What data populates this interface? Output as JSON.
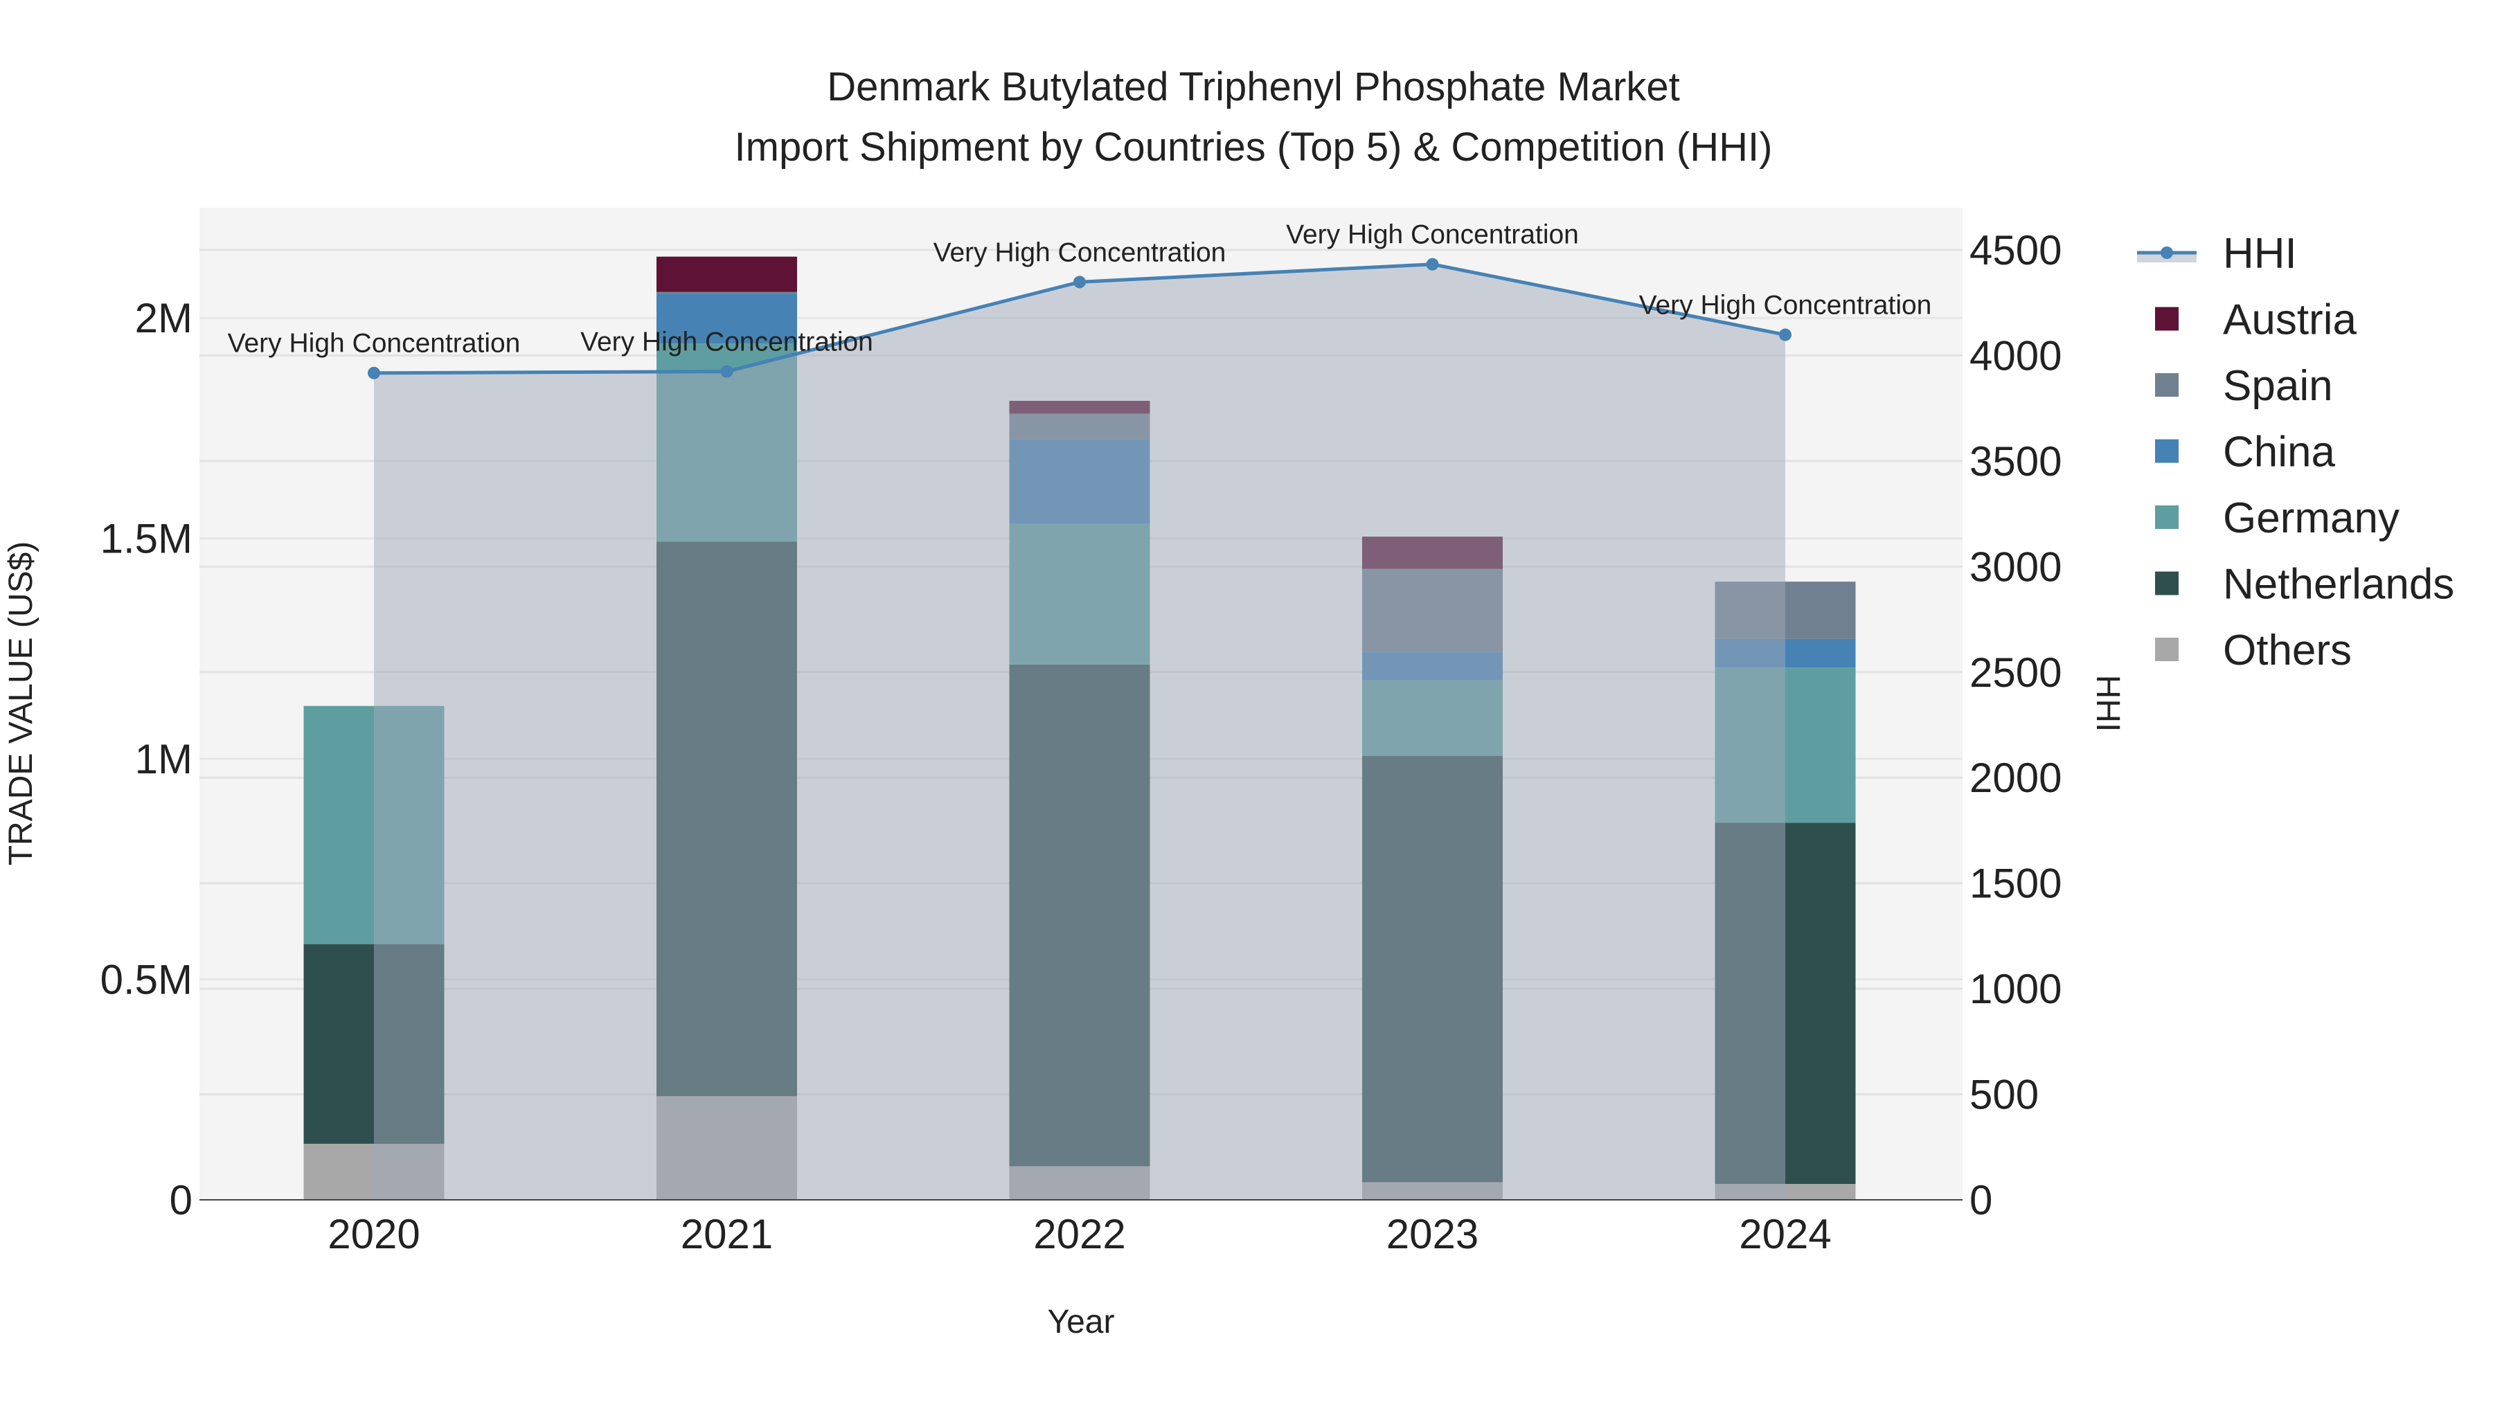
{
  "chart_data": {
    "type": "bar",
    "title_line1": "Denmark Butylated Triphenyl Phosphate Market",
    "title_line2": "Import Shipment by Countries (Top 5) & Competition (HHI)",
    "xlabel": "Year",
    "ylabel": "TRADE VALUE (US$)",
    "y2label": "HHI",
    "categories": [
      "2020",
      "2021",
      "2022",
      "2023",
      "2024"
    ],
    "ylim": [
      0,
      2250000
    ],
    "y2lim": [
      0,
      4700
    ],
    "yticks": [
      {
        "v": 0,
        "label": "0"
      },
      {
        "v": 500000,
        "label": "0.5M"
      },
      {
        "v": 1000000,
        "label": "1M"
      },
      {
        "v": 1500000,
        "label": "1.5M"
      },
      {
        "v": 2000000,
        "label": "2M"
      }
    ],
    "y2ticks": [
      0,
      500,
      1000,
      1500,
      2000,
      2500,
      3000,
      3500,
      4000,
      4500
    ],
    "series": [
      {
        "name": "Others",
        "color": "#a8a8a8",
        "values": [
          127000,
          235000,
          76000,
          40000,
          36000
        ]
      },
      {
        "name": "Netherlands",
        "color": "#2f4f4f",
        "values": [
          453000,
          1258000,
          1138000,
          967000,
          819000
        ]
      },
      {
        "name": "Germany",
        "color": "#5f9ea0",
        "values": [
          540000,
          449000,
          319000,
          171000,
          352000
        ]
      },
      {
        "name": "China",
        "color": "#4682b4",
        "values": [
          0,
          113000,
          192000,
          65000,
          65000
        ]
      },
      {
        "name": "Spain",
        "color": "#708090",
        "values": [
          0,
          4000,
          58000,
          188000,
          130000
        ]
      },
      {
        "name": "Austria",
        "color": "#5e1235",
        "values": [
          0,
          80000,
          29000,
          73000,
          0
        ]
      }
    ],
    "hhi": {
      "name": "HHI",
      "color": "#4682b4",
      "values": [
        3917,
        3924,
        4348,
        4432,
        4098
      ]
    },
    "annotations": [
      "Very High Concentration",
      "Very High Concentration",
      "Very High Concentration",
      "Very High Concentration",
      "Very High Concentration"
    ],
    "legend": [
      "HHI",
      "Austria",
      "Spain",
      "China",
      "Germany",
      "Netherlands",
      "Others"
    ],
    "legend_position": "right",
    "grid": true
  }
}
